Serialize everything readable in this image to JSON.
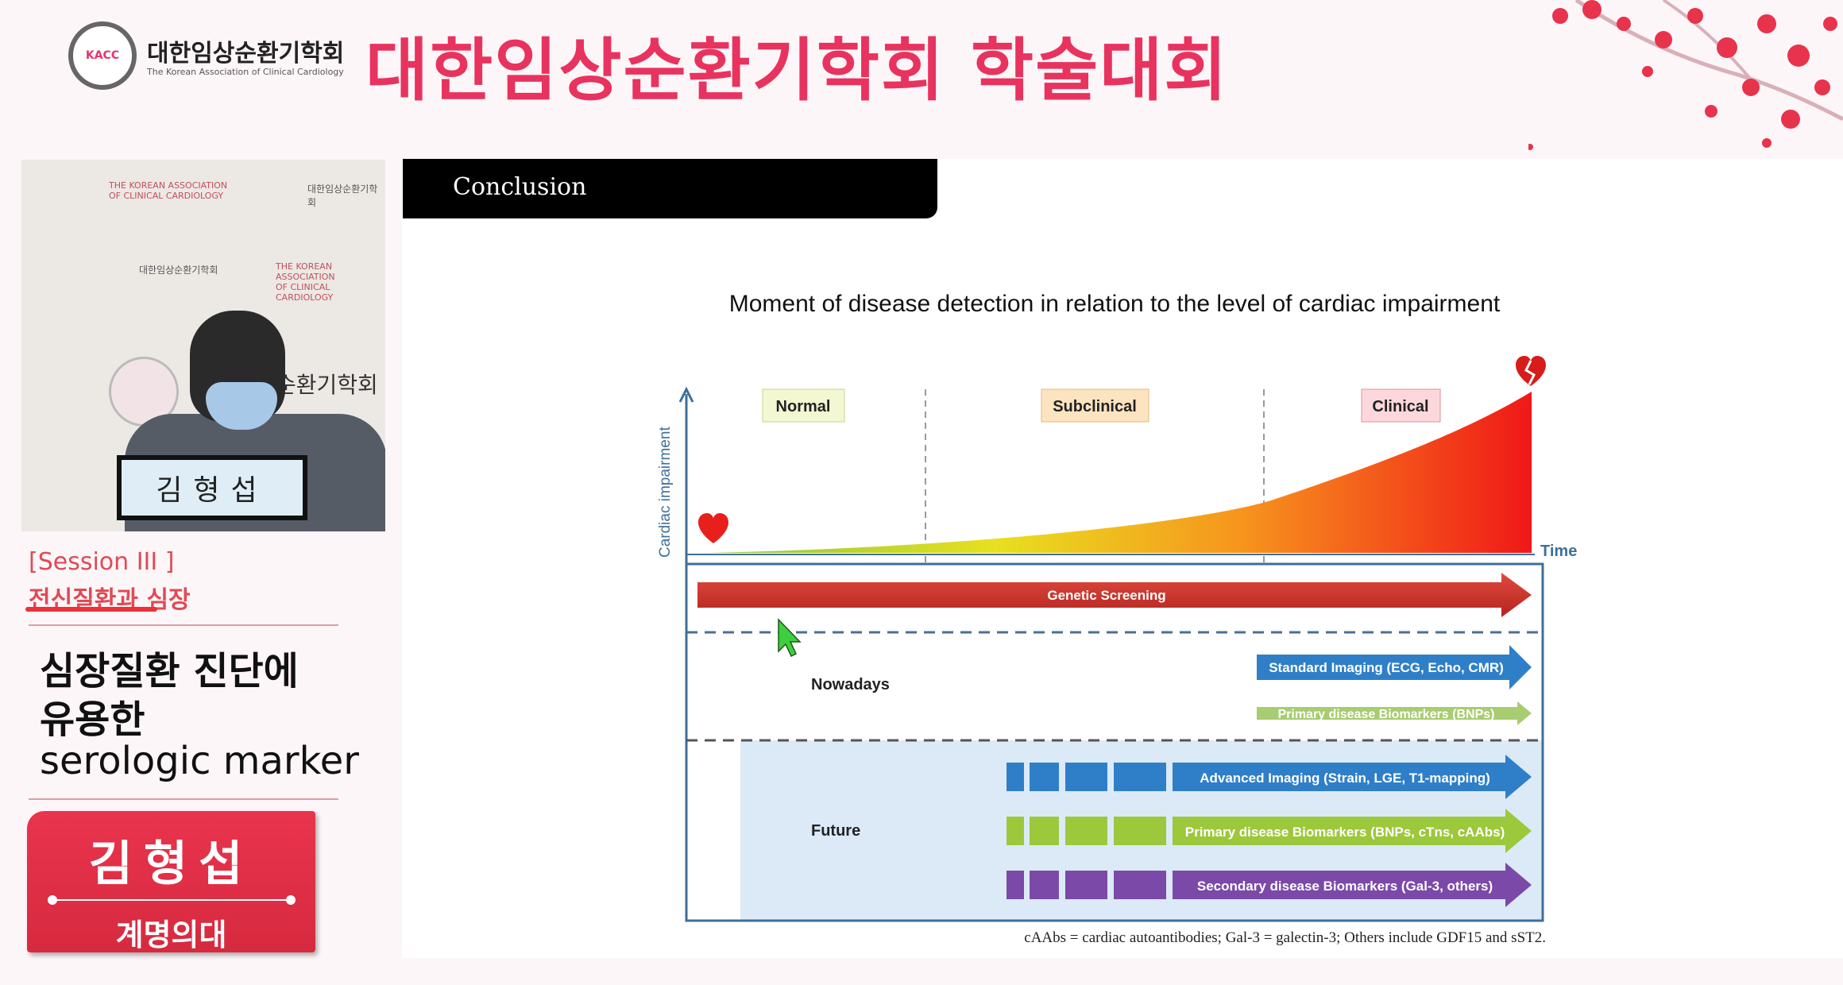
{
  "header": {
    "logo_text": "KACC",
    "logo_kr": "대한임상순환기학회",
    "logo_en": "The Korean Association of Clinical Cardiology",
    "title": "대한임상순환기학회 학술대회"
  },
  "webcam": {
    "backdrop_en_1": "THE KOREAN ASSOCIATION",
    "backdrop_en_2": "OF CLINICAL CARDIOLOGY",
    "backdrop_kr": "대한임상순환기학회",
    "backdrop_big": "순환기학회",
    "nameplate": "김형섭"
  },
  "sidebar": {
    "session": "[Session III ]",
    "session_topic": "전신질환과 심장",
    "talk_title": [
      "심장질환 진단에",
      "유용한",
      "serologic marker"
    ],
    "speaker_name": "김형섭",
    "speaker_affiliation": "계명의대"
  },
  "slide": {
    "heading": "Conclusion",
    "title": "Moment of disease detection in relation to the level of cardiac impairment",
    "y_axis": "Cardiac impairment",
    "x_axis": "Time",
    "phases": [
      "Normal",
      "Subclinical",
      "Clinical"
    ],
    "genetic": "Genetic Screening",
    "nowadays_label": "Nowadays",
    "future_label": "Future",
    "nowadays": [
      "Standard Imaging (ECG, Echo, CMR)",
      "Primary disease Biomarkers (BNPs)"
    ],
    "future": [
      "Advanced Imaging (Strain, LGE, T1-mapping)",
      "Primary disease Biomarkers (BNPs, cTns, cAAbs)",
      "Secondary disease Biomarkers (Gal-3, others)"
    ],
    "footnote": "cAAbs = cardiac autoantibodies; Gal-3 = galectin-3; Others include GDF15 and sST2.",
    "colors": {
      "genetic": "#c8302c",
      "imaging": "#2f7fc8",
      "primary": "#9cc83c",
      "secondary": "#7b4aa8",
      "future_bg": "#dceaf7"
    }
  }
}
